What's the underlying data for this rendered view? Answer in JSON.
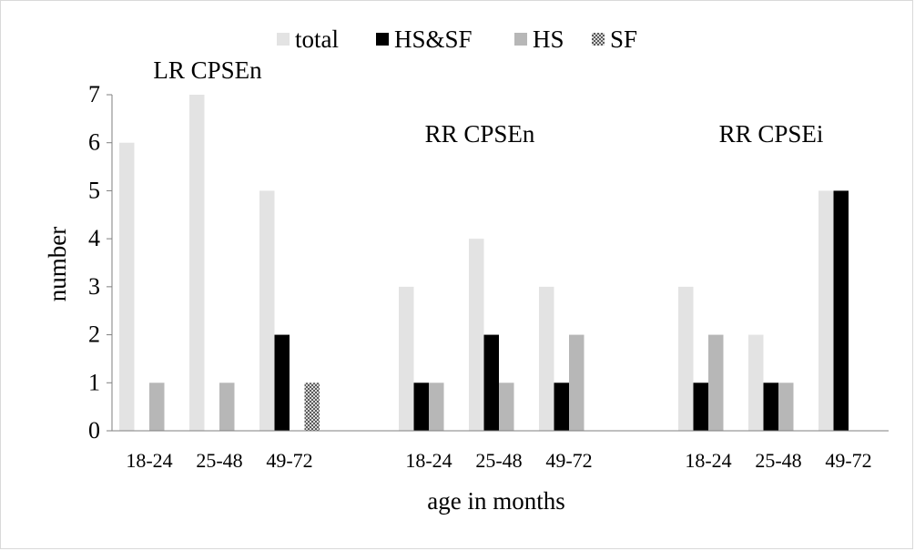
{
  "chart_data": {
    "type": "bar",
    "title": "",
    "xlabel": "age in months",
    "ylabel": "number",
    "ylim": [
      0,
      7
    ],
    "yticks": [
      0,
      1,
      2,
      3,
      4,
      5,
      6,
      7
    ],
    "grid": false,
    "legend_position": "top",
    "groups": [
      {
        "name": "LR CPSEn",
        "categories": [
          "18-24",
          "25-48",
          "49-72"
        ],
        "series": [
          {
            "name": "total",
            "values": [
              6,
              7,
              5
            ]
          },
          {
            "name": "HS&SF",
            "values": [
              0,
              0,
              2
            ]
          },
          {
            "name": "HS",
            "values": [
              1,
              1,
              0
            ]
          },
          {
            "name": "SF",
            "values": [
              0,
              0,
              1
            ]
          }
        ]
      },
      {
        "name": "RR CPSEn",
        "categories": [
          "18-24",
          "25-48",
          "49-72"
        ],
        "series": [
          {
            "name": "total",
            "values": [
              3,
              4,
              3
            ]
          },
          {
            "name": "HS&SF",
            "values": [
              1,
              2,
              1
            ]
          },
          {
            "name": "HS",
            "values": [
              1,
              1,
              2
            ]
          },
          {
            "name": "SF",
            "values": [
              0,
              0,
              0
            ]
          }
        ]
      },
      {
        "name": "RR CPSEi",
        "categories": [
          "18-24",
          "25-48",
          "49-72"
        ],
        "series": [
          {
            "name": "total",
            "values": [
              3,
              2,
              5
            ]
          },
          {
            "name": "HS&SF",
            "values": [
              1,
              1,
              5
            ]
          },
          {
            "name": "HS",
            "values": [
              2,
              1,
              0
            ]
          },
          {
            "name": "SF",
            "values": [
              0,
              0,
              0
            ]
          }
        ]
      }
    ],
    "series_colors": {
      "total": "#e3e3e3",
      "HS&SF": "#000000",
      "HS": "#b7b7b7",
      "SF": "#8c8c8c"
    },
    "series_patterns": {
      "SF": "checker"
    }
  }
}
